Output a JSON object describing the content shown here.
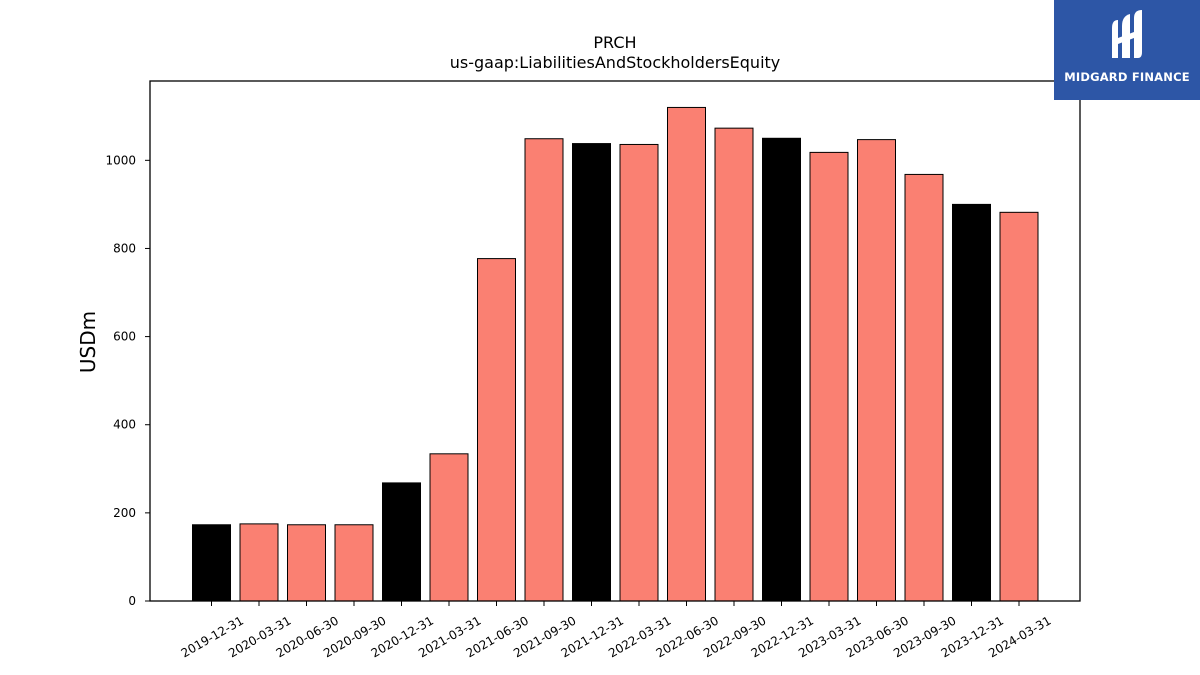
{
  "chart_data": {
    "type": "bar",
    "title": "PRCH",
    "subtitle": "us-gaap:LiabilitiesAndStockholdersEquity",
    "xlabel": "",
    "ylabel": "USDm",
    "ylim": [
      0,
      1180
    ],
    "yticks": [
      0,
      200,
      400,
      600,
      800,
      1000
    ],
    "grid": false,
    "categories": [
      "2019-12-31",
      "2020-03-31",
      "2020-06-30",
      "2020-09-30",
      "2020-12-31",
      "2021-03-31",
      "2021-06-30",
      "2021-09-30",
      "2021-12-31",
      "2022-03-31",
      "2022-06-30",
      "2022-09-30",
      "2022-12-31",
      "2023-03-31",
      "2023-06-30",
      "2023-09-30",
      "2023-12-31",
      "2024-03-31"
    ],
    "values": [
      173,
      175,
      173,
      173,
      268,
      334,
      777,
      1049,
      1038,
      1036,
      1120,
      1073,
      1050,
      1018,
      1047,
      968,
      900,
      882
    ],
    "bar_types": [
      "annual",
      "quarterly",
      "quarterly",
      "quarterly",
      "annual",
      "quarterly",
      "quarterly",
      "quarterly",
      "annual",
      "quarterly",
      "quarterly",
      "quarterly",
      "annual",
      "quarterly",
      "quarterly",
      "quarterly",
      "annual",
      "quarterly"
    ],
    "colors": {
      "annual": "#000000",
      "quarterly": "#fa8072",
      "edge": "#000000"
    }
  },
  "logo": {
    "text": "MIDGARD FINANCE",
    "background": "#2d56a6",
    "icon": "midgard-logo-icon"
  }
}
